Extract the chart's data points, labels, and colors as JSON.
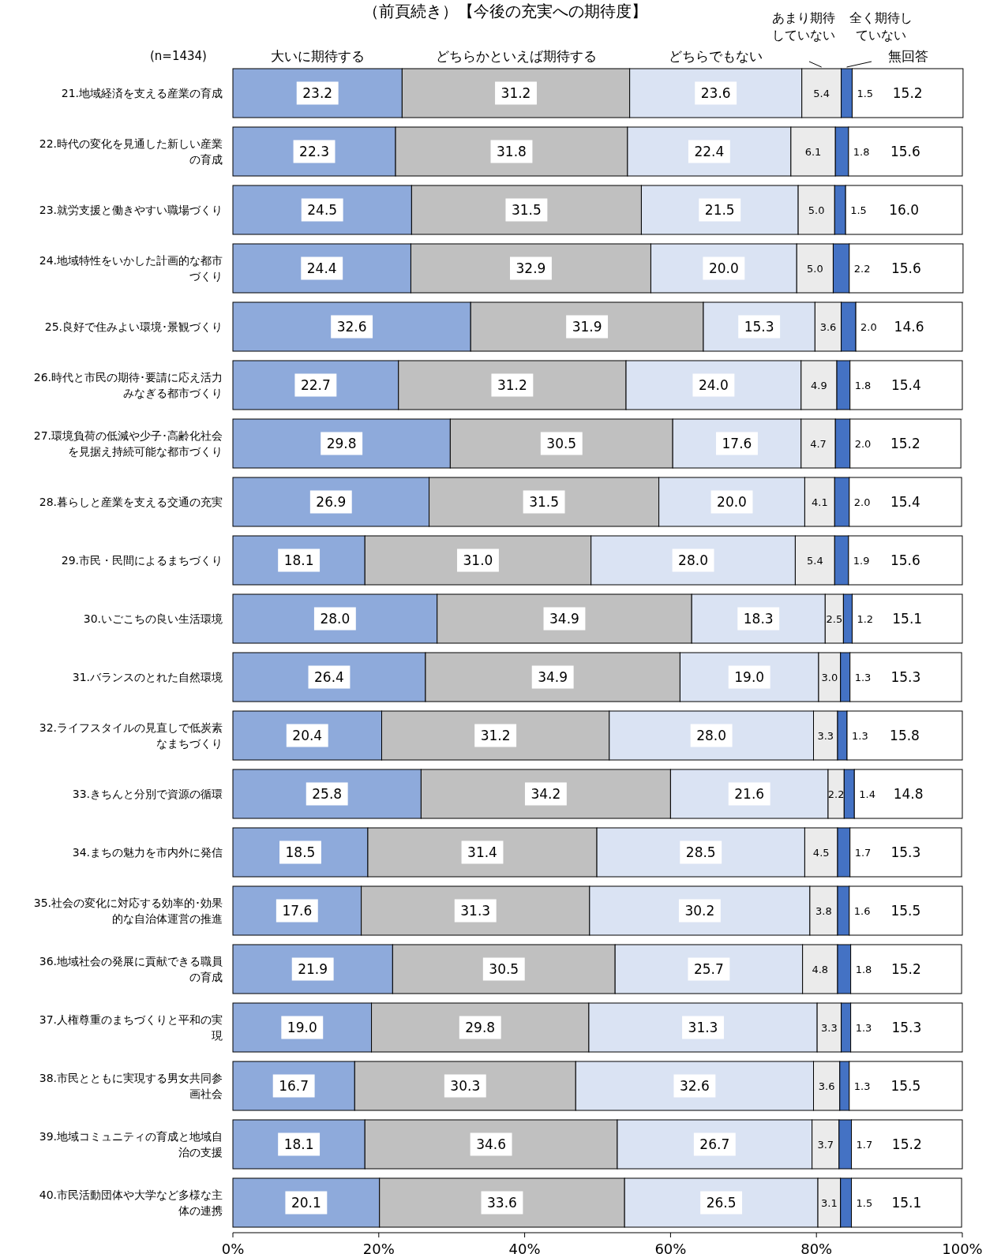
{
  "chart_data": {
    "type": "bar",
    "orientation": "horizontal",
    "stacked": true,
    "legend": "top",
    "title": "（前頁続き）【今後の充実への期待度】",
    "annotations": [
      "(n=1434)"
    ],
    "xlim": [
      0,
      100
    ],
    "xticks": [
      {
        "value": 0,
        "label": "0%"
      },
      {
        "value": 20,
        "label": "20%"
      },
      {
        "value": 40,
        "label": "40%"
      },
      {
        "value": 60,
        "label": "60%"
      },
      {
        "value": 80,
        "label": "80%"
      },
      {
        "value": 100,
        "label": "100%"
      }
    ],
    "categories": [
      "21.地域経済を支える産業の育成",
      "22.時代の変化を見通した新しい産業の育成",
      "23.就労支援と働きやすい職場づくり",
      "24.地域特性をいかした計画的な都市づくり",
      "25.良好で住みよい環境･景観づくり",
      "26.時代と市民の期待･要請に応え活力みなぎる都市づくり",
      "27.環境負荷の低減や少子･高齢化社会を見据え持続可能な都市づくり",
      "28.暮らしと産業を支える交通の充実",
      "29.市民・民間によるまちづくり",
      "30.いごこちの良い生活環境",
      "31.バランスのとれた自然環境",
      "32.ライフスタイルの見直しで低炭素なまちづくり",
      "33.きちんと分別で資源の循環",
      "34.まちの魅力を市内外に発信",
      "35.社会の変化に対応する効率的･効果的な自治体運営の推進",
      "36.地域社会の発展に貢献できる職員の育成",
      "37.人権尊重のまちづくりと平和の実現",
      "38.市民とともに実現する男女共同参画社会",
      "39.地域コミュニティの育成と地域自治の支援",
      "40.市民活動団体や大学など多様な主体の連携"
    ],
    "series": [
      {
        "name": "大いに期待する",
        "color": "#8eaadb",
        "values": [
          23.2,
          22.3,
          24.5,
          24.4,
          32.6,
          22.7,
          29.8,
          26.9,
          18.1,
          28.0,
          26.4,
          20.4,
          25.8,
          18.5,
          17.6,
          21.9,
          19.0,
          16.7,
          18.1,
          20.1
        ],
        "value_labels": [
          "23.2",
          "22.3",
          "24.5",
          "24.4",
          "32.6",
          "22.7",
          "29.8",
          "26.9",
          "18.1",
          "28.0",
          "26.4",
          "20.4",
          "25.8",
          "18.5",
          "17.6",
          "21.9",
          "19.0",
          "16.7",
          "18.1",
          "20.1"
        ]
      },
      {
        "name": "どちらかといえば期待する",
        "color": "#c0c0c0",
        "values": [
          31.2,
          31.8,
          31.5,
          32.9,
          31.9,
          31.2,
          30.5,
          31.5,
          31.0,
          34.9,
          34.9,
          31.2,
          34.2,
          31.4,
          31.3,
          30.5,
          29.8,
          30.3,
          34.6,
          33.6
        ],
        "value_labels": [
          "31.2",
          "31.8",
          "31.5",
          "32.9",
          "31.9",
          "31.2",
          "30.5",
          "31.5",
          "31.0",
          "34.9",
          "34.9",
          "31.2",
          "34.2",
          "31.4",
          "31.3",
          "30.5",
          "29.8",
          "30.3",
          "34.6",
          "33.6"
        ]
      },
      {
        "name": "どちらでもない",
        "color": "#dae3f3",
        "values": [
          23.6,
          22.4,
          21.5,
          20.0,
          15.3,
          24.0,
          17.6,
          20.0,
          28.0,
          18.3,
          19.0,
          28.0,
          21.6,
          28.5,
          30.2,
          25.7,
          31.3,
          32.6,
          26.7,
          26.5
        ],
        "value_labels": [
          "23.6",
          "22.4",
          "21.5",
          "20.0",
          "15.3",
          "24.0",
          "17.6",
          "20.0",
          "28.0",
          "18.3",
          "19.0",
          "28.0",
          "21.6",
          "28.5",
          "30.2",
          "25.7",
          "31.3",
          "32.6",
          "26.7",
          "26.5"
        ]
      },
      {
        "name": "あまり期待していない",
        "color": "#ebebeb",
        "values": [
          5.4,
          6.1,
          5.0,
          5.0,
          3.6,
          4.9,
          4.7,
          4.1,
          5.4,
          2.5,
          3.0,
          3.3,
          2.2,
          4.5,
          3.8,
          4.8,
          3.3,
          3.6,
          3.7,
          3.1
        ],
        "value_labels": [
          "5.4",
          "6.1",
          "5.0",
          "5.0",
          "3.6",
          "4.9",
          "4.7",
          "4.1",
          "5.4",
          "2.5",
          "3.0",
          "3.3",
          "2.2",
          "4.5",
          "3.8",
          "4.8",
          "3.3",
          "3.6",
          "3.7",
          "3.1"
        ]
      },
      {
        "name": "全く期待していない",
        "color": "#4472c4",
        "values": [
          1.5,
          1.8,
          1.5,
          2.2,
          2.0,
          1.8,
          2.0,
          2.0,
          1.9,
          1.2,
          1.3,
          1.3,
          1.4,
          1.7,
          1.6,
          1.8,
          1.3,
          1.3,
          1.7,
          1.5
        ],
        "value_labels": [
          "1.5",
          "1.8",
          "1.5",
          "2.2",
          "2.0",
          "1.8",
          "2.0",
          "2.0",
          "1.9",
          "1.2",
          "1.3",
          "1.3",
          "1.4",
          "1.7",
          "1.6",
          "1.8",
          "1.3",
          "1.3",
          "1.7",
          "1.5"
        ]
      },
      {
        "name": "無回答",
        "color": "#ffffff",
        "values": [
          15.2,
          15.6,
          16.0,
          15.6,
          14.6,
          15.4,
          15.2,
          15.4,
          15.6,
          15.1,
          15.3,
          15.8,
          14.8,
          15.3,
          15.5,
          15.2,
          15.3,
          15.5,
          15.2,
          15.1
        ],
        "value_labels": [
          "15.2",
          "15.6",
          "16.0",
          "15.6",
          "14.6",
          "15.4",
          "15.2",
          "15.4",
          "15.6",
          "15.1",
          "15.3",
          "15.8",
          "14.8",
          "15.3",
          "15.5",
          "15.2",
          "15.3",
          "15.5",
          "15.2",
          "15.1"
        ]
      }
    ]
  }
}
